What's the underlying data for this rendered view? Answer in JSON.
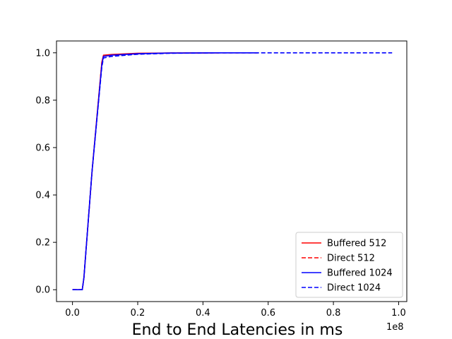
{
  "chart_data": {
    "type": "line",
    "xlabel": "End to End Latencies in ms",
    "ylabel": "",
    "x_offset_label": "1e8",
    "xlim": [
      -0.049,
      1.025
    ],
    "ylim": [
      -0.05,
      1.05
    ],
    "xticks": [
      0.0,
      0.2,
      0.4,
      0.6,
      0.8,
      1.0
    ],
    "xtick_labels": [
      "0.0",
      "0.2",
      "0.4",
      "0.6",
      "0.8",
      "1.0"
    ],
    "yticks": [
      0.0,
      0.2,
      0.4,
      0.6,
      0.8,
      1.0
    ],
    "ytick_labels": [
      "0.0",
      "0.2",
      "0.4",
      "0.6",
      "0.8",
      "1.0"
    ],
    "grid": false,
    "legend_position": "lower-right",
    "series": [
      {
        "name": "Buffered 512",
        "color": "#ff0000",
        "dash": "solid",
        "x": [
          0.0,
          0.03,
          0.035,
          0.06,
          0.09,
          0.095,
          0.12,
          0.2,
          0.3,
          0.45
        ],
        "y": [
          0.0,
          0.0,
          0.05,
          0.5,
          0.96,
          0.99,
          0.993,
          0.998,
          0.999,
          1.0
        ]
      },
      {
        "name": "Direct 512",
        "color": "#ff0000",
        "dash": "dashed",
        "x": [
          0.0,
          0.03,
          0.035,
          0.06,
          0.09,
          0.095,
          0.12,
          0.2,
          0.3,
          0.45,
          0.57
        ],
        "y": [
          0.0,
          0.0,
          0.05,
          0.5,
          0.96,
          0.985,
          0.99,
          0.996,
          0.999,
          1.0,
          1.0
        ]
      },
      {
        "name": "Buffered 1024",
        "color": "#0000ff",
        "dash": "solid",
        "x": [
          0.0,
          0.03,
          0.035,
          0.06,
          0.09,
          0.095,
          0.12,
          0.2,
          0.3,
          0.45,
          0.57
        ],
        "y": [
          0.0,
          0.0,
          0.05,
          0.5,
          0.95,
          0.985,
          0.99,
          0.996,
          0.999,
          1.0,
          1.0
        ]
      },
      {
        "name": "Direct 1024",
        "color": "#0000ff",
        "dash": "dashed",
        "x": [
          0.0,
          0.03,
          0.035,
          0.06,
          0.09,
          0.095,
          0.12,
          0.2,
          0.3,
          0.45,
          0.6,
          0.98
        ],
        "y": [
          0.0,
          0.0,
          0.05,
          0.5,
          0.94,
          0.978,
          0.985,
          0.994,
          0.998,
          1.0,
          1.0,
          1.0
        ]
      }
    ]
  }
}
